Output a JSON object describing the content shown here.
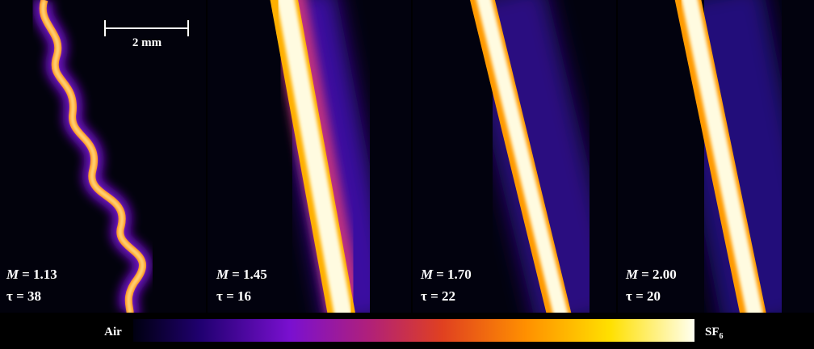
{
  "scale_bar": "2 mm",
  "panels": [
    {
      "symbol": "M",
      "mach": "= 1.13",
      "tau": "τ = 38"
    },
    {
      "symbol": "M",
      "mach": "= 1.45",
      "tau": "τ = 16"
    },
    {
      "symbol": "M",
      "mach": "= 1.70",
      "tau": "τ = 22"
    },
    {
      "symbol": "M",
      "mach": "= 2.00",
      "tau": "τ = 20"
    }
  ],
  "colorbar": {
    "left": "Air",
    "right": "SF",
    "right_subscript": "6"
  }
}
